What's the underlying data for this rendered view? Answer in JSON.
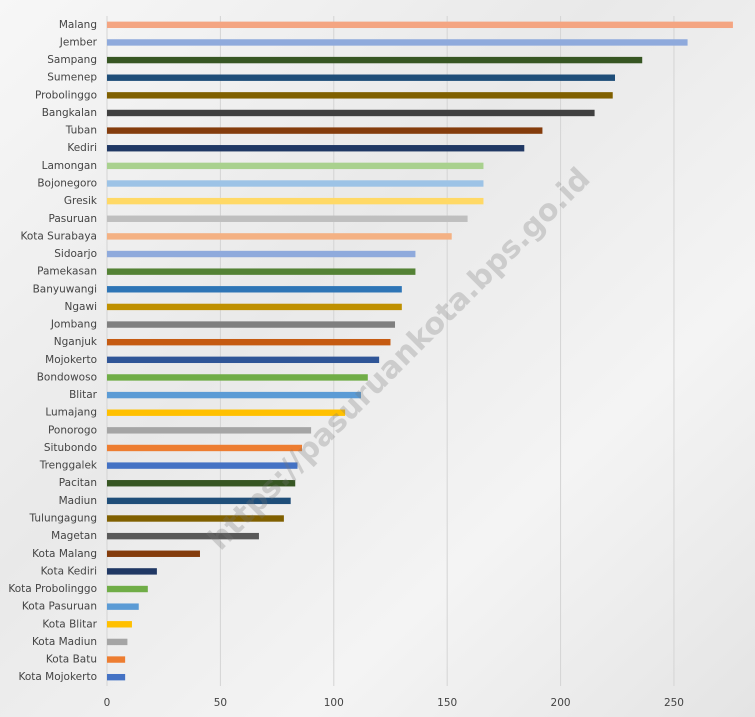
{
  "chart_data": {
    "type": "barh",
    "watermark": "https://pasuruankota.bps.go.id",
    "categories": [
      "Malang",
      "Jember",
      "Sampang",
      "Sumenep",
      "Probolinggo",
      "Bangkalan",
      "Tuban",
      "Kediri",
      "Lamongan",
      "Bojonegoro",
      "Gresik",
      "Pasuruan",
      "Kota Surabaya",
      "Sidoarjo",
      "Pamekasan",
      "Banyuwangi",
      "Ngawi",
      "Jombang",
      "Nganjuk",
      "Mojokerto",
      "Bondowoso",
      "Blitar",
      "Lumajang",
      "Ponorogo",
      "Situbondo",
      "Trenggalek",
      "Pacitan",
      "Madiun",
      "Tulungagung",
      "Magetan",
      "Kota Malang",
      "Kota Kediri",
      "Kota Probolinggo",
      "Kota Pasuruan",
      "Kota Blitar",
      "Kota Madiun",
      "Kota Batu",
      "Kota Mojokerto"
    ],
    "values": [
      276,
      256,
      236,
      224,
      223,
      215,
      192,
      184,
      166,
      166,
      166,
      159,
      152,
      136,
      136,
      130,
      130,
      127,
      125,
      120,
      115,
      112,
      105,
      90,
      86,
      84,
      83,
      81,
      78,
      67,
      41,
      22,
      18,
      14,
      11,
      9,
      8,
      8
    ],
    "colors": [
      "#f4a582",
      "#8faadc",
      "#375623",
      "#1f4e79",
      "#806000",
      "#404040",
      "#843c0c",
      "#203864",
      "#a9d18e",
      "#9dc3e6",
      "#ffd966",
      "#bfbfbf",
      "#f4b183",
      "#8faadc",
      "#548235",
      "#2e75b6",
      "#bf9000",
      "#7f7f7f",
      "#c55a11",
      "#2f5597",
      "#70ad47",
      "#5b9bd5",
      "#ffc000",
      "#a5a5a5",
      "#ed7d31",
      "#4472c4",
      "#375623",
      "#1f4e79",
      "#806000",
      "#595959",
      "#843c0c",
      "#203864",
      "#70ad47",
      "#5b9bd5",
      "#ffc000",
      "#a5a5a5",
      "#ed7d31",
      "#4472c4"
    ],
    "xlim": [
      0,
      280
    ],
    "xticks": [
      0,
      50,
      100,
      150,
      200,
      250
    ],
    "grid": true
  }
}
